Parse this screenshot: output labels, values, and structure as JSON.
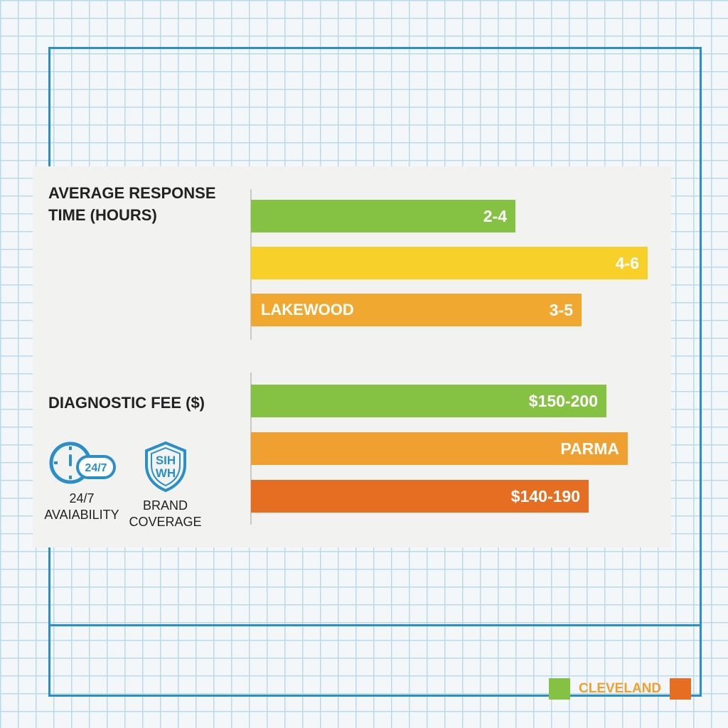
{
  "chart_data": [
    {
      "type": "bar",
      "orientation": "horizontal",
      "title": "AVERAGE RESPONSE TIME (HOURS)",
      "bars": [
        {
          "label": "2-4",
          "low": 2,
          "high": 4,
          "value": 4,
          "color": "#85c143",
          "city": ""
        },
        {
          "label": "4-6",
          "low": 4,
          "high": 6,
          "value": 6,
          "color": "#f7d02a",
          "city": ""
        },
        {
          "label": "3-5",
          "low": 3,
          "high": 5,
          "value": 5,
          "color": "#f0a830",
          "city": "LAKEWOOD"
        }
      ]
    },
    {
      "type": "bar",
      "orientation": "horizontal",
      "title": "DIAGNOSTIC FEE ($)",
      "bars": [
        {
          "label": "$150-200",
          "low": 150,
          "high": 200,
          "value": 200,
          "color": "#85c143",
          "city": ""
        },
        {
          "label": "PARMA",
          "low": null,
          "high": null,
          "value": 212,
          "color": "#f0a030",
          "city": ""
        },
        {
          "label": "$140-190",
          "low": 140,
          "high": 190,
          "value": 190,
          "color": "#e66e22",
          "city": ""
        }
      ]
    }
  ],
  "features": [
    {
      "icon": "clock-24-7-icon",
      "badge": "24/7",
      "lines": [
        "24/7",
        "AVAIABILITY"
      ]
    },
    {
      "icon": "shield-brand-icon",
      "badge": "SIH WH",
      "lines": [
        "BRAND",
        "COVERAGE"
      ]
    }
  ],
  "legend": {
    "label": "CLEVELAND",
    "colors": [
      "#85c143",
      "#e66e22"
    ]
  },
  "colors": {
    "frame": "#2a8fc9",
    "icon": "#2a8fc9"
  }
}
